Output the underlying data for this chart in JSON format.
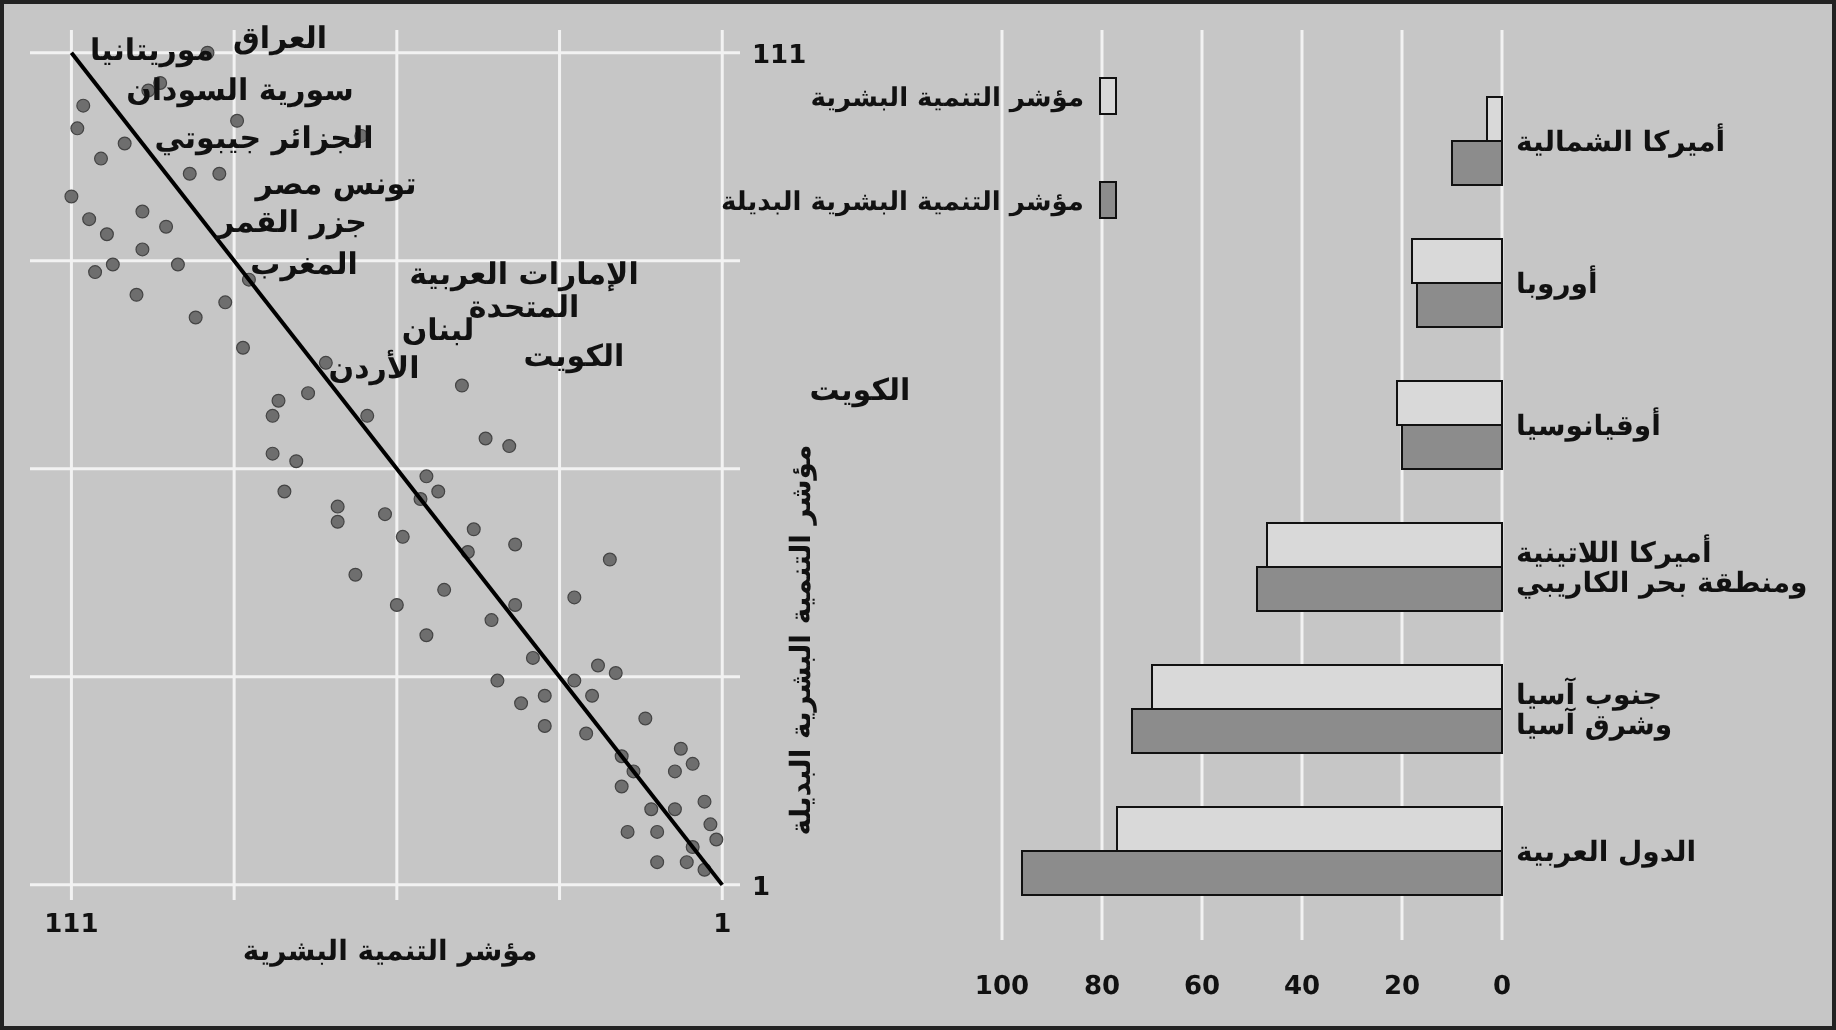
{
  "chart_data": [
    {
      "type": "scatter",
      "xlabel": "مؤشر التنمية البشرية",
      "ylabel": "مؤشر التنمية البشرية البديلة",
      "xlim": [
        118,
        -2
      ],
      "ylim": [
        -1,
        114
      ],
      "xticks": [
        {
          "value": 111,
          "label": "111"
        },
        {
          "value": 83.5,
          "label": null
        },
        {
          "value": 56,
          "label": null
        },
        {
          "value": 28.5,
          "label": null
        },
        {
          "value": 1,
          "label": "1"
        }
      ],
      "yticks": [
        {
          "value": 1,
          "label": "1"
        },
        {
          "value": 28.5,
          "label": null
        },
        {
          "value": 56,
          "label": null
        },
        {
          "value": 83.5,
          "label": null
        },
        {
          "value": 111,
          "label": "111"
        }
      ],
      "grid": true,
      "marker": "circle",
      "series": [
        {
          "type": "scatter",
          "color": "#6e6e6e",
          "x": [
            88,
            96,
            98,
            109,
            83,
            110,
            102,
            106,
            91,
            86,
            62,
            111,
            99,
            108,
            95,
            105,
            99,
            93,
            104,
            107,
            81,
            100,
            85,
            90,
            82,
            68,
            45,
            76,
            71,
            77,
            61,
            41,
            37,
            77,
            73,
            51,
            75,
            66,
            58,
            52,
            66,
            49,
            55,
            43,
            36,
            20,
            44,
            63,
            48,
            56,
            26,
            40,
            36,
            51,
            33,
            22,
            19,
            39,
            26,
            23,
            35,
            31,
            14,
            31,
            24,
            8,
            18,
            16,
            9,
            6,
            18,
            4,
            13,
            9,
            3,
            2,
            6,
            17,
            12,
            4,
            12,
            7
          ],
          "values": [
            111,
            107,
            106,
            104,
            102,
            101,
            99,
            97,
            95,
            95,
            100,
            92,
            90,
            89,
            88,
            87,
            85,
            83,
            83,
            82,
            81,
            79,
            78,
            76,
            72,
            70,
            67,
            65,
            66,
            63,
            63,
            60,
            59,
            58,
            57,
            55,
            53,
            51,
            50,
            52,
            49,
            53,
            47,
            48,
            46,
            44,
            45,
            42,
            40,
            38,
            39,
            36,
            38,
            34,
            31,
            30,
            29,
            28,
            28,
            26,
            25,
            26,
            23,
            22,
            21,
            19,
            18,
            16,
            16,
            17,
            14,
            12,
            11,
            11,
            9,
            7,
            6,
            8,
            8,
            3,
            4,
            4
          ]
        },
        {
          "type": "line",
          "color": "#000000",
          "marker": "none",
          "x": [
            1,
            111
          ],
          "values": [
            1,
            111
          ]
        }
      ],
      "annotations": [
        "العراق",
        "موريتانيا",
        "سورية السودان",
        "الجزائر جيبوتي",
        "تونس مصر",
        "جزر القمر",
        "المغرب",
        "الإمارات العربية\nالمتحدة",
        "لبنان",
        "الكويت",
        "الأردن",
        "الكويت"
      ]
    },
    {
      "type": "bar",
      "orientation": "horizontal",
      "categories": [
        "أميركا الشمالية",
        "أوروبا",
        "أوقيانوسيا",
        "أميركا اللاتينية\nومنطقة بحر الكاريبي",
        "جنوب آسيا\nوشرق آسيا",
        "الدول العربية"
      ],
      "xlim": [
        100,
        0
      ],
      "xticks": [
        100,
        80,
        60,
        40,
        20,
        0
      ],
      "grid": "x",
      "legend": "top left",
      "series": [
        {
          "name": "مؤشر التنمية البشرية",
          "color": "#d9d9d9",
          "values": [
            3,
            18,
            21,
            47,
            70,
            77
          ]
        },
        {
          "name": "مؤشر التنمية البشرية البديلة",
          "color": "#8c8c8c",
          "values": [
            10,
            17,
            20,
            49,
            74,
            96
          ]
        }
      ]
    }
  ]
}
